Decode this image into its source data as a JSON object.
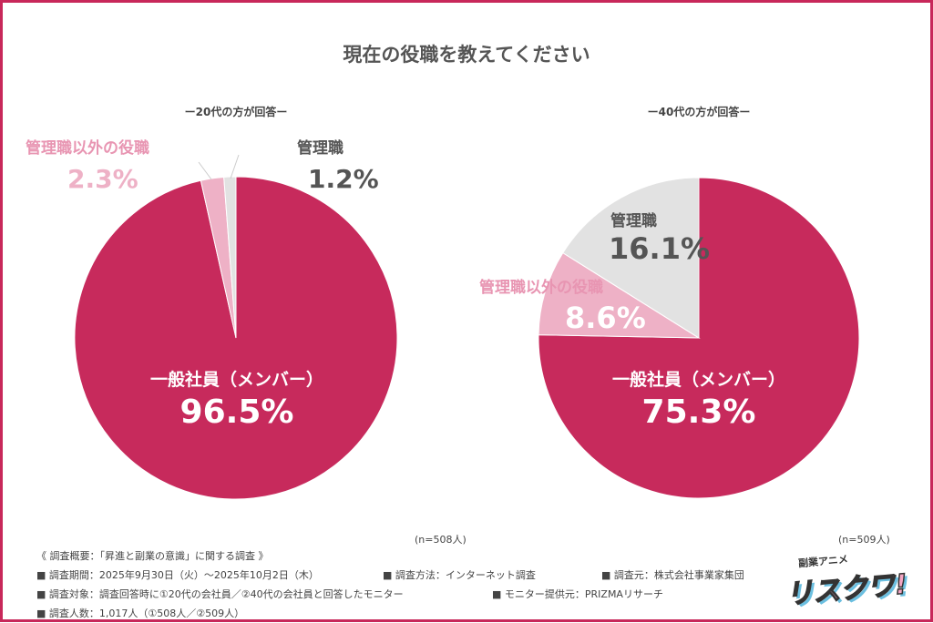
{
  "title": "現在の役職を教えてください",
  "chart_data": [
    {
      "type": "pie",
      "subtitle": "ー20代の方が回答ー",
      "n_label": "(n=508人)",
      "categories": [
        "一般社員（メンバー）",
        "管理職以外の役職",
        "管理職"
      ],
      "values": [
        96.5,
        2.3,
        1.2
      ],
      "value_labels": [
        "96.5%",
        "2.3%",
        "1.2%"
      ],
      "colors": [
        "#c72a5c",
        "#eeb1c6",
        "#e2e2e2"
      ]
    },
    {
      "type": "pie",
      "subtitle": "ー40代の方が回答ー",
      "n_label": "(n=509人)",
      "categories": [
        "一般社員（メンバー）",
        "管理職以外の役職",
        "管理職"
      ],
      "values": [
        75.3,
        8.6,
        16.1
      ],
      "value_labels": [
        "75.3%",
        "8.6%",
        "16.1%"
      ],
      "colors": [
        "#c72a5c",
        "#eeb1c6",
        "#e2e2e2"
      ]
    }
  ],
  "notes": {
    "heading": "《 調査概要：「昇進と副業の意識」に関する調査 》",
    "period": "■ 調査期間：2025年9月30日（火）〜2025年10月2日（木）",
    "method": "■ 調査方法：インターネット調査",
    "source": "■ 調査元：株式会社事業家集団",
    "target": "■ 調査対象：調査回答時に①20代の会社員／②40代の会社員と回答したモニター",
    "provider": "■ モニター提供元：PRIZMAリサーチ",
    "count": "■ 調査人数：1,017人（①508人／②509人）"
  },
  "logo": {
    "top": "副業アニメ",
    "main": "リスクワ!"
  },
  "colors": {
    "border": "#c8285a",
    "label_pink": "#e895b2",
    "label_gray": "#555555"
  }
}
